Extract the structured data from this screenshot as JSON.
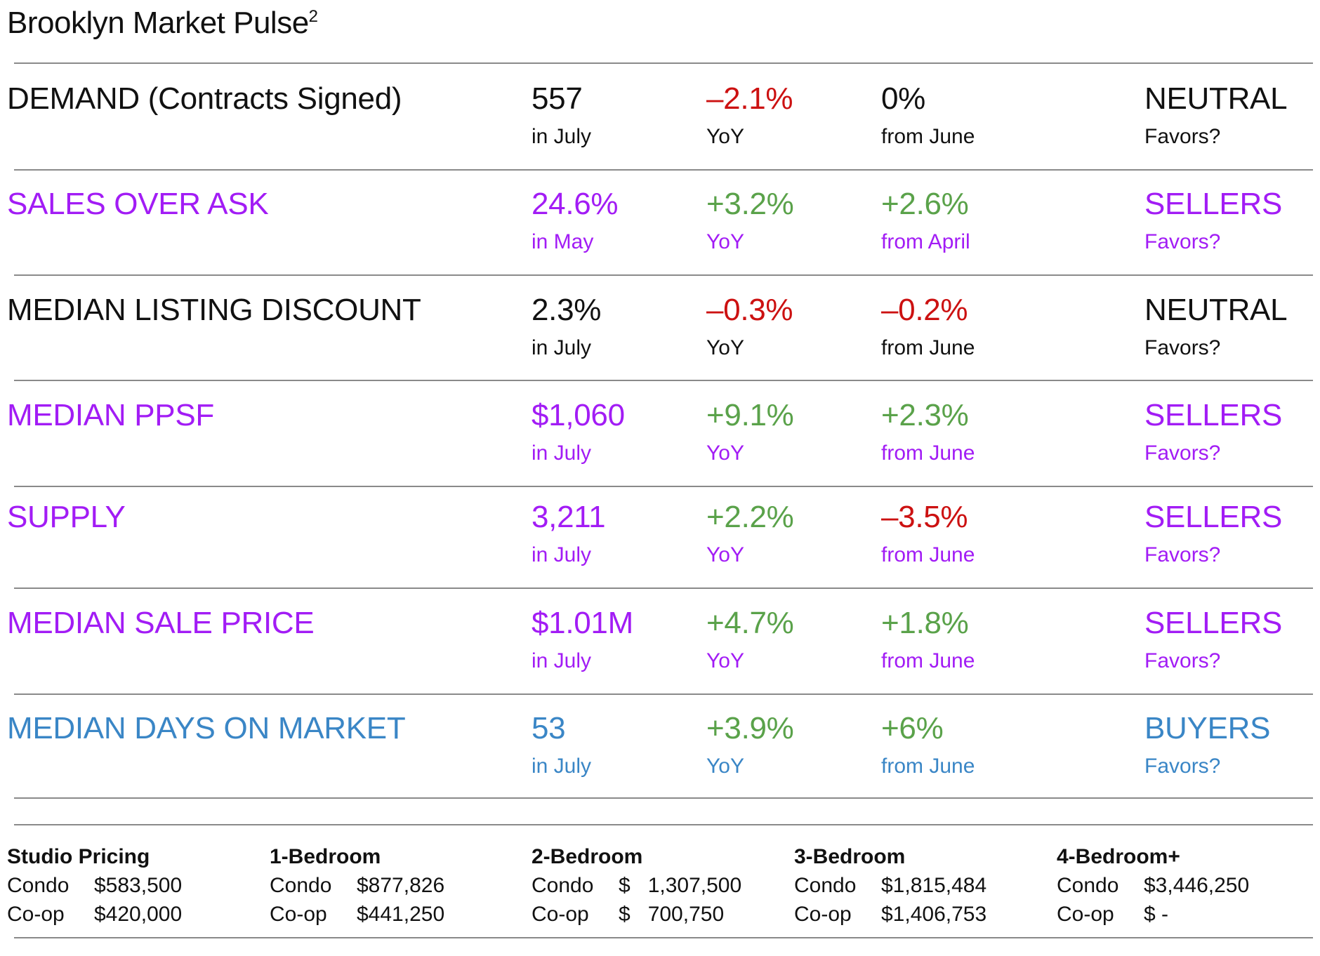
{
  "title": "Brooklyn Market Pulse",
  "title_superscript": "2",
  "colors": {
    "black": "#111111",
    "purple": "#a21cf5",
    "blue": "#3a86c6",
    "red": "#cc1111",
    "green": "#5aa24a"
  },
  "metrics": [
    {
      "name": "DEMAND (Contracts Signed)",
      "value": "557",
      "value_period": "in July",
      "yoy": "–2.1%",
      "yoy_label": "YoY",
      "mom": "0%",
      "mom_label": "from June",
      "favors": "NEUTRAL",
      "favors_label": "Favors?",
      "theme": "black",
      "yoy_color": "red",
      "mom_color": "black"
    },
    {
      "name": "SALES OVER ASK",
      "value": "24.6%",
      "value_period": "in May",
      "yoy": "+3.2%",
      "yoy_label": "YoY",
      "mom": "+2.6%",
      "mom_label": "from April",
      "favors": "SELLERS",
      "favors_label": "Favors?",
      "theme": "purple",
      "yoy_color": "green",
      "mom_color": "green"
    },
    {
      "name": "MEDIAN LISTING DISCOUNT",
      "value": "2.3%",
      "value_period": "in July",
      "yoy": "–0.3%",
      "yoy_label": "YoY",
      "mom": "–0.2%",
      "mom_label": "from June",
      "favors": "NEUTRAL",
      "favors_label": "Favors?",
      "theme": "black",
      "yoy_color": "red",
      "mom_color": "red"
    },
    {
      "name": "MEDIAN PPSF",
      "value": "$1,060",
      "value_period": "in July",
      "yoy": "+9.1%",
      "yoy_label": "YoY",
      "mom": "+2.3%",
      "mom_label": "from June",
      "favors": "SELLERS",
      "favors_label": "Favors?",
      "theme": "purple",
      "yoy_color": "green",
      "mom_color": "green"
    },
    {
      "name": "SUPPLY",
      "value": "3,211",
      "value_period": "in July",
      "yoy": "+2.2%",
      "yoy_label": "YoY",
      "mom": "–3.5%",
      "mom_label": "from June",
      "favors": "SELLERS",
      "favors_label": "Favors?",
      "theme": "purple",
      "yoy_color": "green",
      "mom_color": "red"
    },
    {
      "name": "MEDIAN SALE PRICE",
      "value": "$1.01M",
      "value_period": "in July",
      "yoy": "+4.7%",
      "yoy_label": "YoY",
      "mom": "+1.8%",
      "mom_label": "from June",
      "favors": "SELLERS",
      "favors_label": "Favors?",
      "theme": "purple",
      "yoy_color": "green",
      "mom_color": "green"
    },
    {
      "name": "MEDIAN DAYS ON MARKET",
      "value": "53",
      "value_period": "in July",
      "yoy": "+3.9%",
      "yoy_label": "YoY",
      "mom": "+6%",
      "mom_label": "from June",
      "favors": "BUYERS",
      "favors_label": "Favors?",
      "theme": "blue",
      "yoy_color": "green",
      "mom_color": "green"
    }
  ],
  "bedrooms": [
    {
      "heading": "Studio Pricing",
      "condo_label": "Condo",
      "condo": "$583,500",
      "coop_label": "Co-op",
      "coop": "$420,000"
    },
    {
      "heading": "1-Bedroom",
      "condo_label": "Condo",
      "condo": "$877,826",
      "coop_label": "Co-op",
      "coop": "$441,250"
    },
    {
      "heading": "2-Bedroom",
      "condo_label": "Condo",
      "condo": "$   1,307,500",
      "coop_label": "Co-op",
      "coop": "$   700,750"
    },
    {
      "heading": "3-Bedroom",
      "condo_label": "Condo",
      "condo": "$1,815,484",
      "coop_label": "Co-op",
      "coop": "$1,406,753"
    },
    {
      "heading": "4-Bedroom+",
      "condo_label": "Condo",
      "condo": "$3,446,250",
      "coop_label": "Co-op",
      "coop": "$ -"
    }
  ]
}
